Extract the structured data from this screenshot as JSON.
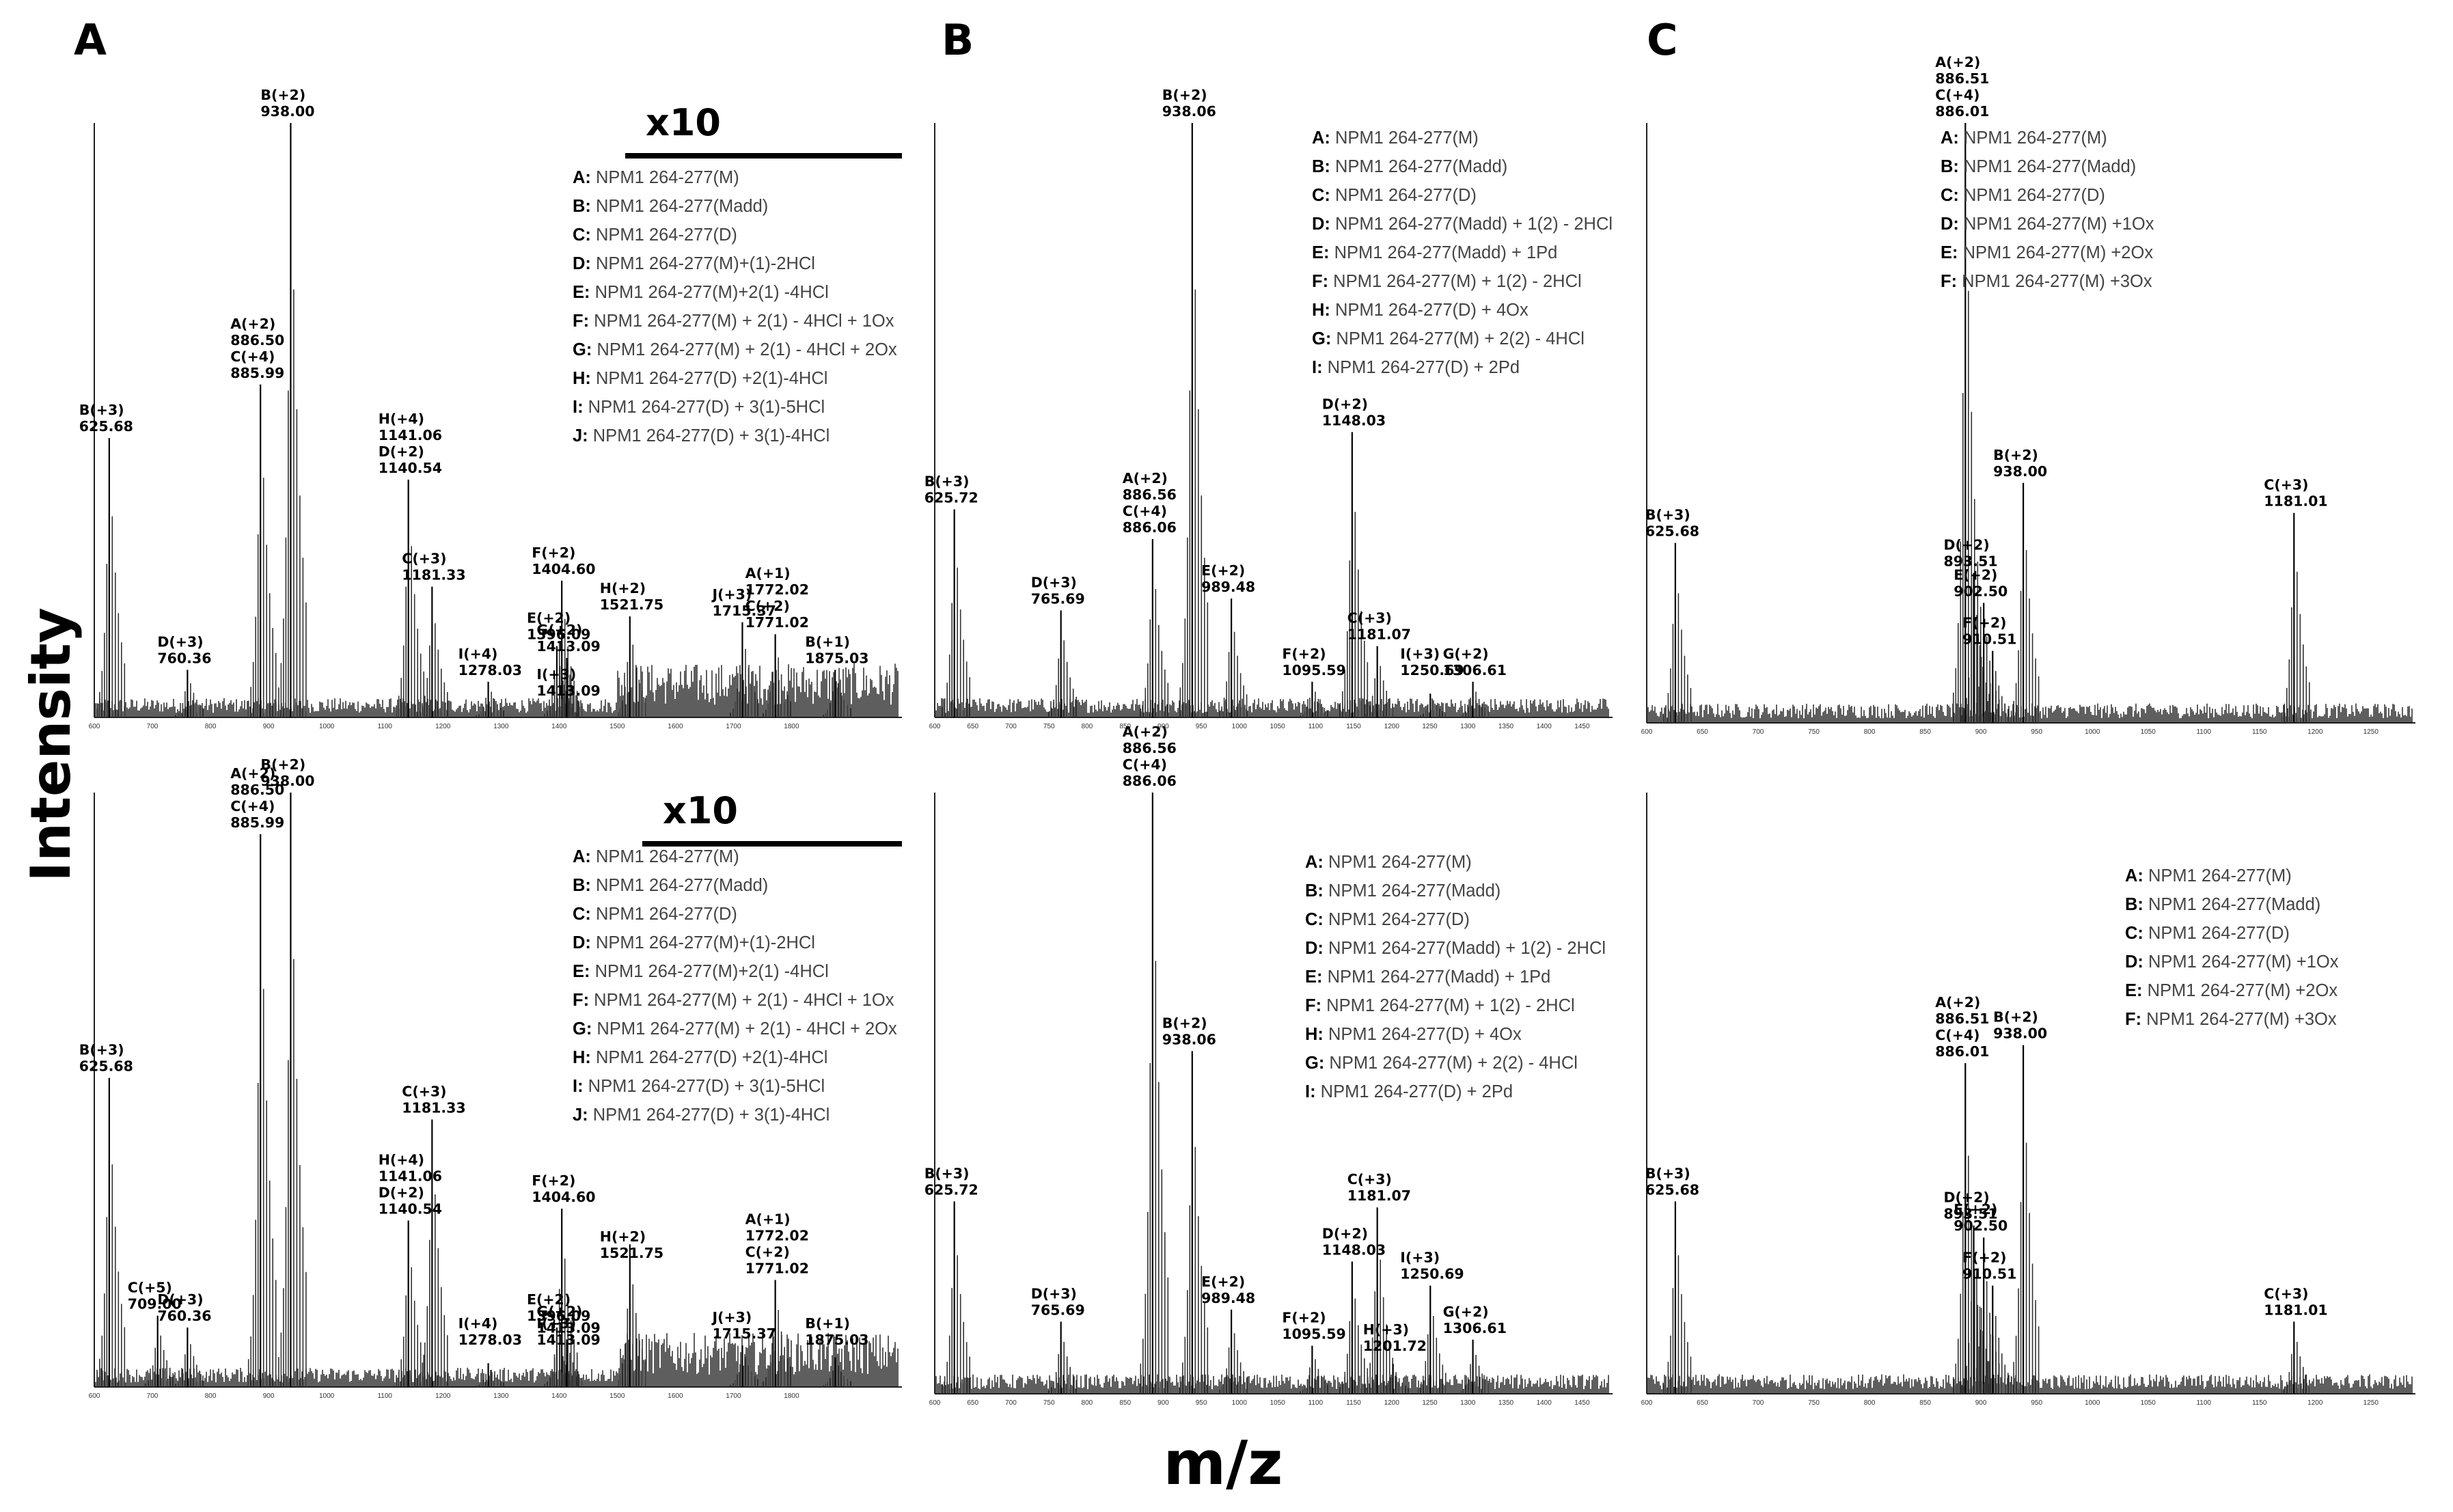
{
  "figure": {
    "axis_x_label": "m/z",
    "axis_y_label": "Intensity",
    "panel_letters": [
      "A",
      "B",
      "C"
    ],
    "zoom_label": "x10"
  },
  "chart_data": [
    {
      "id": "A-top",
      "type": "line",
      "panel": "A",
      "row": "top",
      "xlim": [
        600,
        1990
      ],
      "zoom": {
        "label": "x10",
        "from": 1500
      },
      "ticks": [
        600,
        700,
        800,
        900,
        1000,
        1100,
        1200,
        1300,
        1400,
        1500,
        1600,
        1700,
        1800
      ],
      "tick_labels": [
        "600",
        "700",
        "800",
        "900",
        "1000",
        "1100",
        "1200",
        "1300",
        "1400",
        "1500",
        "1600",
        "1700",
        "1800"
      ],
      "peaks": [
        {
          "mz": 625.68,
          "rel": 0.47,
          "label": "B(+3)\n625.68"
        },
        {
          "mz": 760.36,
          "rel": 0.08,
          "label": "D(+3)\n760.36"
        },
        {
          "mz": 885.99,
          "rel": 0.56,
          "label": "A(+2)\n886.50\nC(+4)\n885.99"
        },
        {
          "mz": 938.0,
          "rel": 1.0,
          "label": "B(+2)\n938.00"
        },
        {
          "mz": 1140.54,
          "rel": 0.4,
          "label": "H(+4)\n1141.06\nD(+2)\n1140.54"
        },
        {
          "mz": 1181.33,
          "rel": 0.22,
          "label": "C(+3)\n1181.33"
        },
        {
          "mz": 1278.03,
          "rel": 0.06,
          "label": "I(+4)\n1278.03"
        },
        {
          "mz": 1396.09,
          "rel": 0.12,
          "label": "E(+2)\n1396.09"
        },
        {
          "mz": 1404.6,
          "rel": 0.23,
          "label": "F(+2)\n1404.60"
        },
        {
          "mz": 1413.09,
          "rel": 0.1,
          "label": "G(+2)\n1413.09"
        },
        {
          "mz": 1521.75,
          "rel": 0.17,
          "label": "H(+2)\n1521.75"
        },
        {
          "mz": 1413.09,
          "rel": 0.0,
          "label": "I(+3)\n1413.09"
        },
        {
          "mz": 1715.37,
          "rel": 0.16,
          "label": "J(+3)\n1715.37"
        },
        {
          "mz": 1772.02,
          "rel": 0.14,
          "label": "A(+1)\n1772.02\nC(+2)\n1771.02"
        },
        {
          "mz": 1875.03,
          "rel": 0.08,
          "label": "B(+1)\n1875.03"
        }
      ],
      "legend": [
        {
          "key": "A:",
          "text": "NPM1 264-277(M)"
        },
        {
          "key": "B:",
          "text": "NPM1 264-277(Madd)"
        },
        {
          "key": "C:",
          "text": "NPM1 264-277(D)"
        },
        {
          "key": "D:",
          "text": "NPM1 264-277(M)+(1)-2HCl"
        },
        {
          "key": "E:",
          "text": "NPM1 264-277(M)+2(1) -4HCl"
        },
        {
          "key": "F:",
          "text": "NPM1 264-277(M) + 2(1) - 4HCl + 1Ox"
        },
        {
          "key": "G:",
          "text": "NPM1 264-277(M) + 2(1) - 4HCl + 2Ox"
        },
        {
          "key": "H:",
          "text": "NPM1 264-277(D) +2(1)-4HCl"
        },
        {
          "key": "I:",
          "text": "NPM1 264-277(D) + 3(1)-5HCl"
        },
        {
          "key": "J:",
          "text": "NPM1 264-277(D) + 3(1)-4HCl"
        }
      ]
    },
    {
      "id": "B-top",
      "type": "line",
      "panel": "B",
      "row": "top",
      "xlim": [
        600,
        1490
      ],
      "ticks": [
        600,
        650,
        700,
        750,
        800,
        850,
        900,
        950,
        1000,
        1050,
        1100,
        1150,
        1200,
        1250,
        1300,
        1350,
        1400,
        1450
      ],
      "tick_labels": [
        "600",
        "650",
        "700",
        "750",
        "800",
        "850",
        "900",
        "950",
        "1000",
        "1050",
        "1100",
        "1150",
        "1200",
        "1250",
        "1300",
        "1350",
        "1400",
        "1450"
      ],
      "peaks": [
        {
          "mz": 625.72,
          "rel": 0.35,
          "label": "B(+3)\n625.72"
        },
        {
          "mz": 765.69,
          "rel": 0.18,
          "label": "D(+3)\n765.69"
        },
        {
          "mz": 886.06,
          "rel": 0.3,
          "label": "A(+2)\n886.56\nC(+4)\n886.06"
        },
        {
          "mz": 938.06,
          "rel": 1.0,
          "label": "B(+2)\n938.06"
        },
        {
          "mz": 989.48,
          "rel": 0.2,
          "label": "E(+2)\n989.48"
        },
        {
          "mz": 1095.59,
          "rel": 0.06,
          "label": "F(+2)\n1095.59"
        },
        {
          "mz": 1148.03,
          "rel": 0.48,
          "label": "D(+2)\n1148.03"
        },
        {
          "mz": 1181.07,
          "rel": 0.12,
          "label": "C(+3)\n1181.07"
        },
        {
          "mz": 1250.69,
          "rel": 0.04,
          "label": "I(+3)\n1250.69"
        },
        {
          "mz": 1306.61,
          "rel": 0.06,
          "label": "G(+2)\n1306.61"
        }
      ],
      "legend": [
        {
          "key": "A:",
          "text": "NPM1 264-277(M)"
        },
        {
          "key": "B:",
          "text": "NPM1 264-277(Madd)"
        },
        {
          "key": "C:",
          "text": "NPM1 264-277(D)"
        },
        {
          "key": "D:",
          "text": "NPM1 264-277(Madd) + 1(2) - 2HCl"
        },
        {
          "key": "E:",
          "text": "NPM1 264-277(Madd) + 1Pd"
        },
        {
          "key": "F:",
          "text": "NPM1 264-277(M) + 1(2) - 2HCl"
        },
        {
          "key": "H:",
          "text": "NPM1 264-277(D) + 4Ox"
        },
        {
          "key": "G:",
          "text": "NPM1 264-277(M) + 2(2) - 4HCl"
        },
        {
          "key": "I:",
          "text": "NPM1 264-277(D) + 2Pd"
        }
      ]
    },
    {
      "id": "C-top",
      "type": "line",
      "panel": "C",
      "row": "top",
      "xlim": [
        600,
        1290
      ],
      "ticks": [
        600,
        650,
        700,
        750,
        800,
        850,
        900,
        950,
        1000,
        1050,
        1100,
        1150,
        1200,
        1250
      ],
      "tick_labels": [
        "600",
        "650",
        "700",
        "750",
        "800",
        "850",
        "900",
        "950",
        "1000",
        "1050",
        "1100",
        "1150",
        "1200",
        "1250"
      ],
      "peaks": [
        {
          "mz": 625.68,
          "rel": 0.3,
          "label": "B(+3)\n625.68"
        },
        {
          "mz": 886.01,
          "rel": 1.0,
          "label": "A(+2)\n886.51\nC(+4)\n886.01"
        },
        {
          "mz": 893.51,
          "rel": 0.25,
          "label": "D(+2)\n893.51"
        },
        {
          "mz": 902.5,
          "rel": 0.2,
          "label": "E(+2)\n902.50"
        },
        {
          "mz": 910.51,
          "rel": 0.12,
          "label": "F(+2)\n910.51"
        },
        {
          "mz": 938.0,
          "rel": 0.4,
          "label": "B(+2)\n938.00"
        },
        {
          "mz": 1181.01,
          "rel": 0.35,
          "label": "C(+3)\n1181.01"
        }
      ],
      "legend": [
        {
          "key": "A:",
          "text": "NPM1 264-277(M)"
        },
        {
          "key": "B:",
          "text": "NPM1 264-277(Madd)"
        },
        {
          "key": "C:",
          "text": "NPM1 264-277(D)"
        },
        {
          "key": "D:",
          "text": "NPM1 264-277(M) +1Ox"
        },
        {
          "key": "E:",
          "text": "NPM1 264-277(M) +2Ox"
        },
        {
          "key": "F:",
          "text": "NPM1 264-277(M) +3Ox"
        }
      ]
    },
    {
      "id": "A-bottom",
      "type": "line",
      "panel": "A",
      "row": "bottom",
      "xlim": [
        600,
        1990
      ],
      "zoom": {
        "label": "x10",
        "from": 1500
      },
      "ticks": [
        600,
        700,
        800,
        900,
        1000,
        1100,
        1200,
        1300,
        1400,
        1500,
        1600,
        1700,
        1800
      ],
      "tick_labels": [
        "600",
        "700",
        "800",
        "900",
        "1000",
        "1100",
        "1200",
        "1300",
        "1400",
        "1500",
        "1600",
        "1700",
        "1800"
      ],
      "peaks": [
        {
          "mz": 625.68,
          "rel": 0.52,
          "label": "B(+3)\n625.68"
        },
        {
          "mz": 709.0,
          "rel": 0.12,
          "label": "C(+5)\n709.00"
        },
        {
          "mz": 760.36,
          "rel": 0.1,
          "label": "D(+3)\n760.36"
        },
        {
          "mz": 885.99,
          "rel": 0.93,
          "label": "A(+2)\n886.50\nC(+4)\n885.99"
        },
        {
          "mz": 938.0,
          "rel": 1.0,
          "label": "B(+2)\n938.00"
        },
        {
          "mz": 1140.54,
          "rel": 0.28,
          "label": "H(+4)\n1141.06\nD(+2)\n1140.54"
        },
        {
          "mz": 1181.33,
          "rel": 0.45,
          "label": "C(+3)\n1181.33"
        },
        {
          "mz": 1278.03,
          "rel": 0.04,
          "label": "I(+4)\n1278.03"
        },
        {
          "mz": 1396.09,
          "rel": 0.1,
          "label": "E(+2)\n1396.09"
        },
        {
          "mz": 1404.6,
          "rel": 0.3,
          "label": "F(+2)\n1404.60"
        },
        {
          "mz": 1413.09,
          "rel": 0.08,
          "label": "G(+2)\n1413.09"
        },
        {
          "mz": 1521.75,
          "rel": 0.24,
          "label": "H(+2)\n1521.75"
        },
        {
          "mz": 1413.09,
          "rel": 0.0,
          "label": "I(+3)\n1413.09"
        },
        {
          "mz": 1715.37,
          "rel": 0.07,
          "label": "J(+3)\n1715.37"
        },
        {
          "mz": 1772.02,
          "rel": 0.18,
          "label": "A(+1)\n1772.02\nC(+2)\n1771.02"
        },
        {
          "mz": 1875.03,
          "rel": 0.05,
          "label": "B(+1)\n1875.03"
        }
      ],
      "legend": [
        {
          "key": "A:",
          "text": "NPM1 264-277(M)"
        },
        {
          "key": "B:",
          "text": "NPM1 264-277(Madd)"
        },
        {
          "key": "C:",
          "text": "NPM1 264-277(D)"
        },
        {
          "key": "D:",
          "text": "NPM1 264-277(M)+(1)-2HCl"
        },
        {
          "key": "E:",
          "text": "NPM1 264-277(M)+2(1) -4HCl"
        },
        {
          "key": "F:",
          "text": "NPM1 264-277(M) + 2(1) - 4HCl + 1Ox"
        },
        {
          "key": "G:",
          "text": "NPM1 264-277(M) + 2(1) - 4HCl + 2Ox"
        },
        {
          "key": "H:",
          "text": "NPM1 264-277(D) +2(1)-4HCl"
        },
        {
          "key": "I:",
          "text": "NPM1 264-277(D) + 3(1)-5HCl"
        },
        {
          "key": "J:",
          "text": "NPM1 264-277(D) + 3(1)-4HCl"
        }
      ]
    },
    {
      "id": "B-bottom",
      "type": "line",
      "panel": "B",
      "row": "bottom",
      "xlim": [
        600,
        1490
      ],
      "ticks": [
        600,
        650,
        700,
        750,
        800,
        850,
        900,
        950,
        1000,
        1050,
        1100,
        1150,
        1200,
        1250,
        1300,
        1350,
        1400,
        1450
      ],
      "tick_labels": [
        "600",
        "650",
        "700",
        "750",
        "800",
        "850",
        "900",
        "950",
        "1000",
        "1050",
        "1100",
        "1150",
        "1200",
        "1250",
        "1300",
        "1350",
        "1400",
        "1450"
      ],
      "peaks": [
        {
          "mz": 625.72,
          "rel": 0.32,
          "label": "B(+3)\n625.72"
        },
        {
          "mz": 765.69,
          "rel": 0.12,
          "label": "D(+3)\n765.69"
        },
        {
          "mz": 886.06,
          "rel": 1.0,
          "label": "A(+2)\n886.56\nC(+4)\n886.06"
        },
        {
          "mz": 938.06,
          "rel": 0.57,
          "label": "B(+2)\n938.06"
        },
        {
          "mz": 989.48,
          "rel": 0.14,
          "label": "E(+2)\n989.48"
        },
        {
          "mz": 1095.59,
          "rel": 0.08,
          "label": "F(+2)\n1095.59"
        },
        {
          "mz": 1148.03,
          "rel": 0.22,
          "label": "D(+2)\n1148.03"
        },
        {
          "mz": 1181.07,
          "rel": 0.31,
          "label": "C(+3)\n1181.07"
        },
        {
          "mz": 1201.72,
          "rel": 0.05,
          "label": "H(+3)\n1201.72"
        },
        {
          "mz": 1250.69,
          "rel": 0.18,
          "label": "I(+3)\n1250.69"
        },
        {
          "mz": 1306.61,
          "rel": 0.09,
          "label": "G(+2)\n1306.61"
        }
      ],
      "legend": [
        {
          "key": "A:",
          "text": "NPM1 264-277(M)"
        },
        {
          "key": "B:",
          "text": "NPM1 264-277(Madd)"
        },
        {
          "key": "C:",
          "text": "NPM1 264-277(D)"
        },
        {
          "key": "D:",
          "text": "NPM1 264-277(Madd) + 1(2) - 2HCl"
        },
        {
          "key": "E:",
          "text": "NPM1 264-277(Madd) + 1Pd"
        },
        {
          "key": "F:",
          "text": "NPM1 264-277(M) + 1(2) - 2HCl"
        },
        {
          "key": "H:",
          "text": "NPM1 264-277(D) + 4Ox"
        },
        {
          "key": "G:",
          "text": "NPM1 264-277(M) + 2(2) - 4HCl"
        },
        {
          "key": "I:",
          "text": "NPM1 264-277(D) + 2Pd"
        }
      ]
    },
    {
      "id": "C-bottom",
      "type": "line",
      "panel": "C",
      "row": "bottom",
      "xlim": [
        600,
        1290
      ],
      "ticks": [
        600,
        650,
        700,
        750,
        800,
        850,
        900,
        950,
        1000,
        1050,
        1100,
        1150,
        1200,
        1250
      ],
      "tick_labels": [
        "600",
        "650",
        "700",
        "750",
        "800",
        "850",
        "900",
        "950",
        "1000",
        "1050",
        "1100",
        "1150",
        "1200",
        "1250"
      ],
      "peaks": [
        {
          "mz": 625.68,
          "rel": 0.32,
          "label": "B(+3)\n625.68"
        },
        {
          "mz": 886.01,
          "rel": 0.55,
          "label": "A(+2)\n886.51\nC(+4)\n886.01"
        },
        {
          "mz": 893.51,
          "rel": 0.28,
          "label": "D(+2)\n893.51"
        },
        {
          "mz": 902.5,
          "rel": 0.26,
          "label": "E(+2)\n902.50"
        },
        {
          "mz": 910.51,
          "rel": 0.18,
          "label": "F(+2)\n910.51"
        },
        {
          "mz": 938.0,
          "rel": 0.58,
          "label": "B(+2)\n938.00"
        },
        {
          "mz": 1181.01,
          "rel": 0.12,
          "label": "C(+3)\n1181.01"
        }
      ],
      "legend": [
        {
          "key": "A:",
          "text": "NPM1 264-277(M)"
        },
        {
          "key": "B:",
          "text": "NPM1 264-277(Madd)"
        },
        {
          "key": "C:",
          "text": "NPM1 264-277(D)"
        },
        {
          "key": "D:",
          "text": "NPM1 264-277(M) +1Ox"
        },
        {
          "key": "E:",
          "text": "NPM1 264-277(M) +2Ox"
        },
        {
          "key": "F:",
          "text": "NPM1 264-277(M) +3Ox"
        }
      ]
    }
  ]
}
